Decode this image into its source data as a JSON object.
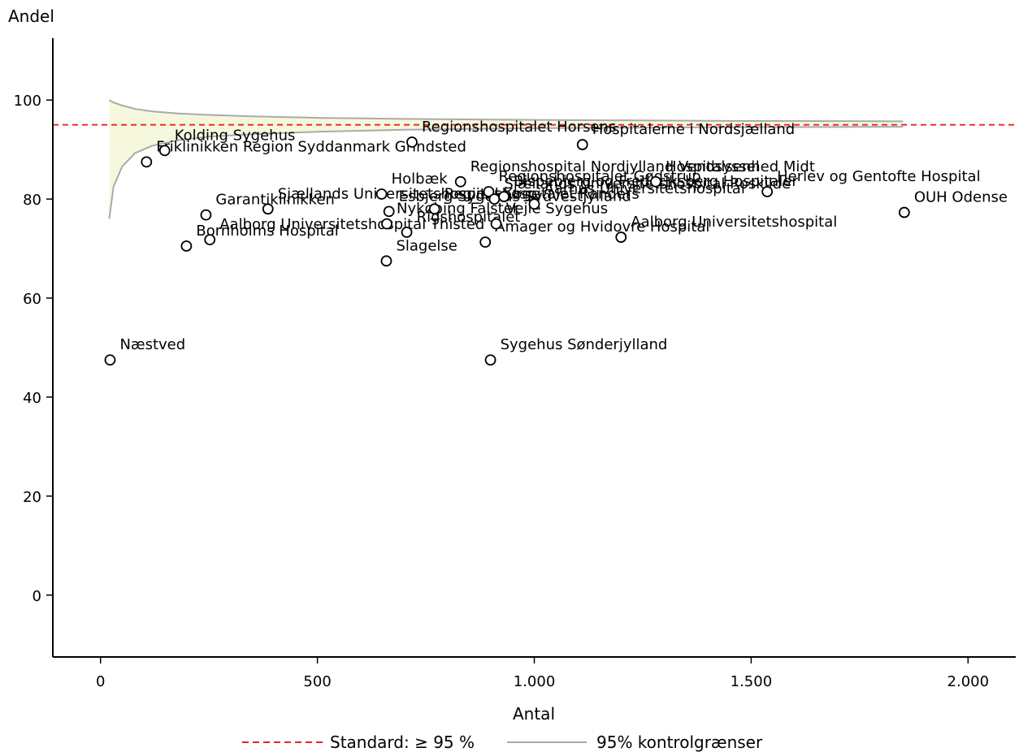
{
  "chart_data": {
    "type": "scatter",
    "xlabel": "Antal",
    "ylabel": "Andel",
    "xlim": [
      -110,
      2110
    ],
    "ylim": [
      -12.5,
      112.5
    ],
    "xticks": [
      0,
      500,
      1000,
      1500,
      2000
    ],
    "xtick_labels": [
      "0",
      "500",
      "1.000",
      "1.500",
      "2.000"
    ],
    "yticks": [
      0,
      20,
      40,
      60,
      80,
      100
    ],
    "ytick_labels": [
      "0",
      "20",
      "40",
      "60",
      "80",
      "100"
    ],
    "grid": false,
    "standard_value": 95,
    "control_limits": {
      "x": [
        20,
        30,
        50,
        80,
        120,
        180,
        250,
        350,
        500,
        700,
        1000,
        1400,
        1850
      ],
      "upper": [
        100,
        99.5,
        98.9,
        98.2,
        97.7,
        97.3,
        97.0,
        96.7,
        96.4,
        96.2,
        96.0,
        95.8,
        95.7
      ],
      "lower": [
        76,
        82.5,
        86.6,
        89.3,
        90.8,
        91.9,
        92.6,
        93.1,
        93.6,
        94.0,
        94.3,
        94.5,
        94.6
      ]
    },
    "points": [
      {
        "label": "Næstved",
        "x": 22,
        "y": 47.5
      },
      {
        "label": "Friklinikken Region Syddanmark Grindsted",
        "x": 106,
        "y": 87.5
      },
      {
        "label": "Kolding Sygehus",
        "x": 148,
        "y": 89.8
      },
      {
        "label": "Bornholms Hospital",
        "x": 198,
        "y": 70.5
      },
      {
        "label": "Garantiklinikken",
        "x": 243,
        "y": 76.8
      },
      {
        "label": "Aalborg Universitetshospital Thisted",
        "x": 252,
        "y": 71.8
      },
      {
        "label": "Sjællands Universitetshospital Køge",
        "x": 386,
        "y": 78.0
      },
      {
        "label": "Slagelse",
        "x": 659,
        "y": 67.5
      },
      {
        "label": "Holbæk",
        "x": 648,
        "y": 81.0
      },
      {
        "label": "Nykøbing Falster",
        "x": 660,
        "y": 75.0
      },
      {
        "label": "Esbjerg Sygehus Sydvestjylland",
        "x": 665,
        "y": 77.5
      },
      {
        "label": "Regionshospitalet Horsens",
        "x": 718,
        "y": 91.5
      },
      {
        "label": "Rigshospitalet",
        "x": 706,
        "y": 73.3
      },
      {
        "label": "Regionshospital Nordjylland Vendsyssel",
        "x": 830,
        "y": 83.5
      },
      {
        "label": "Regionshospitalet Randers",
        "x": 770,
        "y": 78.0
      },
      {
        "label": "Amager og Hvidovre Hospital",
        "x": 887,
        "y": 71.3
      },
      {
        "label": "Sygehus Sønderjylland",
        "x": 899,
        "y": 47.5
      },
      {
        "label": "Regionshospitalet Gødstrup",
        "x": 895,
        "y": 81.5
      },
      {
        "label": "Sjællands Universitetshospital Roskilde",
        "x": 908,
        "y": 80.0
      },
      {
        "label": "Vejle Sygehus",
        "x": 912,
        "y": 75.0
      },
      {
        "label": "Bispebjerg og Frederiksberg Hospitaler",
        "x": 930,
        "y": 80.5
      },
      {
        "label": "Aarhus Universitetshospital",
        "x": 1000,
        "y": 79.0
      },
      {
        "label": "Hospitalerne i Nordsjælland",
        "x": 1111,
        "y": 91.0
      },
      {
        "label": "Aalborg Universitetshospital",
        "x": 1200,
        "y": 72.3
      },
      {
        "label": "Hospitalsenhed Midt",
        "x": 1280,
        "y": 83.5
      },
      {
        "label": "Herlev og Gentofte Hospital",
        "x": 1537,
        "y": 81.5
      },
      {
        "label": "OUH Odense",
        "x": 1853,
        "y": 77.3
      }
    ],
    "legend_position": "bottom-center",
    "legend": [
      {
        "name": "Standard: ≥ 95 %",
        "style": "dashed",
        "color": "#ee2222"
      },
      {
        "name": "95% kontrolgrænser",
        "style": "solid",
        "color": "#aaaaaa"
      }
    ],
    "colors": {
      "band_fill": "#f5f8dc",
      "limit_line": "#aaaaaa",
      "standard_line": "#ee2222",
      "point_stroke": "#000000",
      "axis": "#000000"
    }
  }
}
